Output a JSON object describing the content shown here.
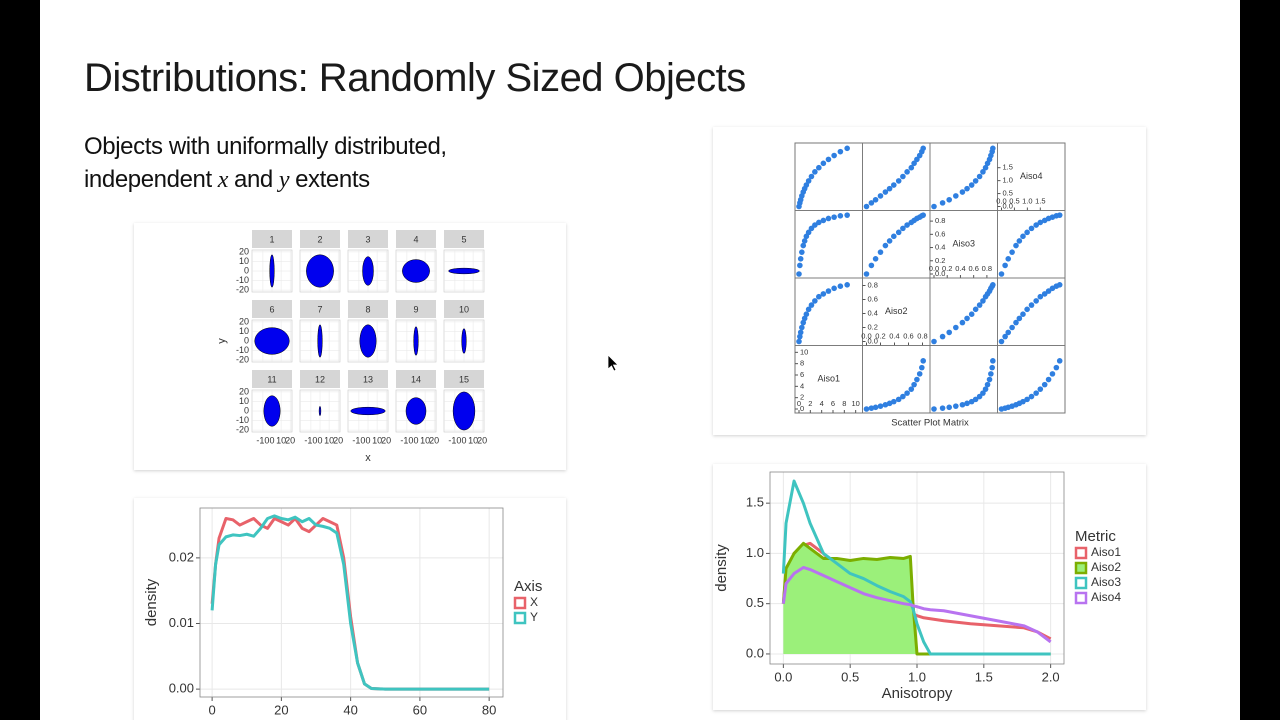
{
  "slide": {
    "title": "Distributions: Randomly Sized Objects",
    "body_line1": "Objects with uniformally distributed,",
    "body_line2": [
      "independent",
      "x",
      "and",
      "y",
      "extents"
    ]
  },
  "chart_data": [
    {
      "type": "ellipse-facets",
      "panels": [
        "1",
        "2",
        "3",
        "4",
        "5",
        "6",
        "7",
        "8",
        "9",
        "10",
        "11",
        "12",
        "13",
        "14",
        "15"
      ],
      "x_extent": [
        5,
        30,
        12,
        30,
        34,
        38,
        5,
        18,
        5,
        5,
        18,
        2,
        38,
        22,
        24
      ],
      "y_extent": [
        34,
        34,
        30,
        24,
        6,
        28,
        34,
        34,
        30,
        26,
        32,
        10,
        8,
        28,
        40
      ],
      "xlabel": "x",
      "ylabel": "y",
      "xlim": [
        -22,
        22
      ],
      "ylim": [
        -22,
        22
      ],
      "xticks": [
        -10,
        0,
        10,
        20
      ],
      "yticks": [
        -20,
        -10,
        0,
        10,
        20
      ],
      "color": "#0000ee",
      "grid": true
    },
    {
      "type": "scatter-matrix",
      "caption": "Scatter Plot Matrix",
      "color": "#2f7fe0",
      "variables": [
        {
          "name": "Aiso1",
          "values": [
            0,
            0.15,
            0.3,
            0.5,
            0.75,
            1,
            1.3,
            1.7,
            2.2,
            2.8,
            3.5,
            4.3,
            5.2,
            6.2,
            7.3,
            8.5
          ],
          "lim": [
            0,
            10.5
          ],
          "ticks": [
            0,
            2,
            4,
            6,
            8,
            10
          ]
        },
        {
          "name": "Aiso2",
          "values": [
            0,
            0.07,
            0.13,
            0.2,
            0.27,
            0.33,
            0.39,
            0.46,
            0.52,
            0.58,
            0.64,
            0.68,
            0.72,
            0.76,
            0.79,
            0.81
          ],
          "lim": [
            0,
            0.85
          ],
          "ticks": [
            {
              "value": 0,
              "label": "0.0"
            },
            0.2,
            0.4,
            0.6,
            0.8
          ]
        },
        {
          "name": "Aiso3",
          "values": [
            0,
            0.13,
            0.23,
            0.33,
            0.43,
            0.5,
            0.57,
            0.63,
            0.69,
            0.74,
            0.78,
            0.81,
            0.84,
            0.86,
            0.88,
            0.89
          ],
          "lim": [
            0,
            0.9
          ],
          "ticks": [
            {
              "value": 0,
              "label": "0.0"
            },
            0.2,
            0.4,
            0.6,
            0.8
          ]
        },
        {
          "name": "Aiso4",
          "values": [
            0,
            0.14,
            0.26,
            0.41,
            0.56,
            0.69,
            0.83,
            0.99,
            1.16,
            1.34,
            1.5,
            1.67,
            1.82,
            1.97,
            2.12,
            2.25
          ],
          "lim": [
            0,
            2.3
          ],
          "ticks": [
            {
              "value": 0,
              "label": "0.0"
            },
            0.5,
            {
              "value": 1,
              "label": "1.0"
            },
            1.5
          ]
        }
      ]
    },
    {
      "type": "line",
      "ylabel": "density",
      "legend_title": "Axis",
      "grid": true,
      "x": [
        0,
        1,
        2,
        4,
        6,
        8,
        10,
        12,
        14,
        16,
        18,
        20,
        22,
        24,
        26,
        28,
        30,
        32,
        34,
        36,
        38,
        40,
        42,
        44,
        46,
        50,
        60,
        70,
        80
      ],
      "xlim": [
        -3.5,
        84
      ],
      "ylim": [
        -0.0012,
        0.0276
      ],
      "xticks": [
        0,
        20,
        40,
        60,
        80
      ],
      "yticks": [
        {
          "value": 0,
          "label": "0.00"
        },
        0.01,
        0.02
      ],
      "series": [
        {
          "name": "X",
          "color": "#e8626a",
          "values": [
            0.013,
            0.019,
            0.023,
            0.026,
            0.0258,
            0.025,
            0.0255,
            0.026,
            0.025,
            0.0245,
            0.026,
            0.0255,
            0.025,
            0.026,
            0.0245,
            0.024,
            0.025,
            0.026,
            0.0255,
            0.025,
            0.02,
            0.011,
            0.004,
            0.0008,
            0.0001,
            0,
            0,
            0,
            0
          ]
        },
        {
          "name": "Y",
          "color": "#3fc4c0",
          "values": [
            0.012,
            0.019,
            0.022,
            0.0232,
            0.0235,
            0.0234,
            0.0236,
            0.0233,
            0.0245,
            0.026,
            0.0264,
            0.026,
            0.0258,
            0.0262,
            0.0255,
            0.026,
            0.025,
            0.0248,
            0.0245,
            0.0238,
            0.019,
            0.01,
            0.004,
            0.0008,
            0.0001,
            0,
            0,
            0,
            0
          ]
        }
      ]
    },
    {
      "type": "line",
      "xlabel": "Anisotropy",
      "ylabel": "density",
      "legend_title": "Metric",
      "grid": true,
      "x": [
        0,
        0.02,
        0.08,
        0.15,
        0.2,
        0.3,
        0.4,
        0.5,
        0.6,
        0.7,
        0.8,
        0.9,
        0.95,
        0.97,
        1.0,
        1.05,
        1.1,
        1.2,
        1.4,
        1.6,
        1.8,
        1.9,
        2.0
      ],
      "xlim": [
        -0.1,
        2.1
      ],
      "ylim": [
        -0.1,
        1.81
      ],
      "xticks": [
        {
          "value": 0,
          "label": "0.0"
        },
        0.5,
        {
          "value": 1,
          "label": "1.0"
        },
        1.5,
        {
          "value": 2,
          "label": "2.0"
        }
      ],
      "yticks": [
        {
          "value": 0,
          "label": "0.0"
        },
        0.5,
        {
          "value": 1,
          "label": "1.0"
        },
        1.5
      ],
      "series": [
        {
          "name": "Aiso1",
          "color": "#e8626a",
          "values": [
            0.5,
            0.8,
            1.0,
            1.08,
            1.1,
            1.0,
            0.85,
            0.72,
            0.62,
            0.54,
            0.47,
            0.43,
            0.41,
            0.4,
            0.38,
            0.36,
            0.35,
            0.33,
            0.3,
            0.28,
            0.26,
            0.22,
            0.15
          ]
        },
        {
          "name": "Aiso2",
          "color": "#7cae00",
          "fill": "#9bf07a",
          "values": [
            0.5,
            0.85,
            1.0,
            1.1,
            1.05,
            0.95,
            0.95,
            0.93,
            0.95,
            0.94,
            0.96,
            0.95,
            0.97,
            0.5,
            0,
            0,
            0,
            0,
            0,
            0,
            0,
            0,
            0
          ]
        },
        {
          "name": "Aiso3",
          "color": "#3fc4c0",
          "values": [
            0.8,
            1.3,
            1.72,
            1.5,
            1.3,
            1.0,
            0.9,
            0.8,
            0.75,
            0.68,
            0.62,
            0.57,
            0.52,
            0.45,
            0.3,
            0.12,
            0,
            0,
            0,
            0,
            0,
            0,
            0
          ]
        },
        {
          "name": "Aiso4",
          "color": "#b873f0",
          "values": [
            0.5,
            0.7,
            0.8,
            0.86,
            0.84,
            0.78,
            0.72,
            0.66,
            0.6,
            0.56,
            0.53,
            0.5,
            0.49,
            0.48,
            0.47,
            0.45,
            0.44,
            0.43,
            0.38,
            0.33,
            0.28,
            0.22,
            0.12
          ]
        }
      ]
    }
  ]
}
